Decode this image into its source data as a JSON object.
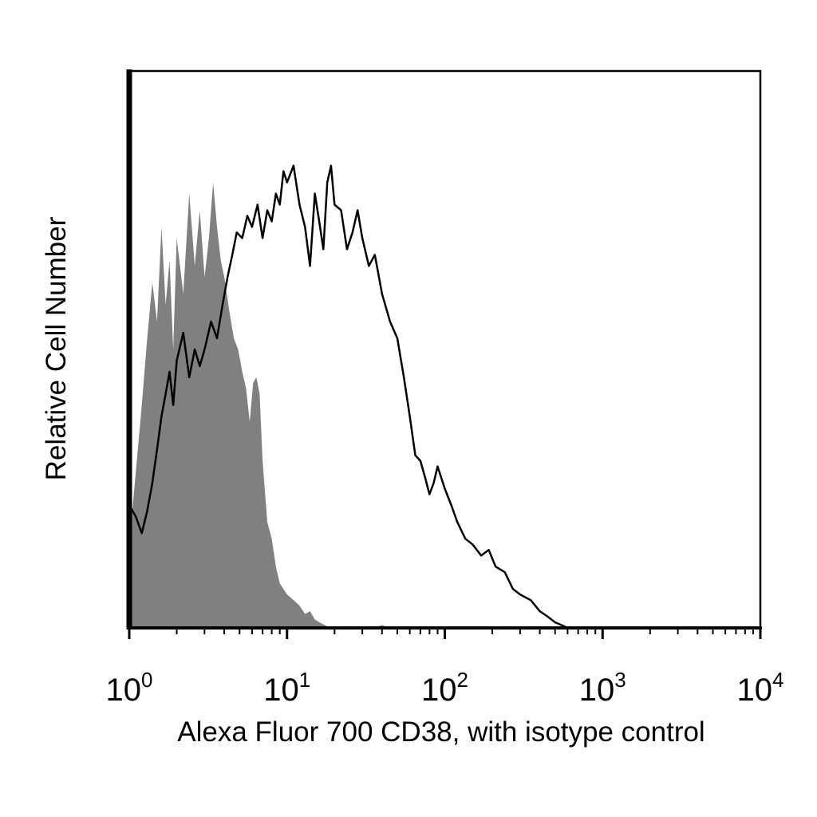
{
  "chart_data": {
    "type": "area",
    "xlabel": "Alexa Fluor 700 CD38, with isotype control",
    "ylabel": "Relative Cell Number",
    "xscale": "log",
    "xlim": [
      1,
      10000
    ],
    "ylim": [
      0,
      100
    ],
    "grid": false,
    "x_ticks": [
      {
        "base": "10",
        "exp": "0",
        "value": 1
      },
      {
        "base": "10",
        "exp": "1",
        "value": 10
      },
      {
        "base": "10",
        "exp": "2",
        "value": 100
      },
      {
        "base": "10",
        "exp": "3",
        "value": 1000
      },
      {
        "base": "10",
        "exp": "4",
        "value": 10000
      }
    ],
    "series": [
      {
        "role": "isotype-control",
        "fill": "#808080",
        "stroke": "none",
        "x": [
          1.0,
          1.1,
          1.2,
          1.3,
          1.4,
          1.5,
          1.6,
          1.7,
          1.8,
          1.9,
          2.0,
          2.2,
          2.4,
          2.6,
          2.8,
          3.0,
          3.2,
          3.4,
          3.6,
          3.8,
          4.0,
          4.3,
          4.6,
          4.9,
          5.2,
          5.5,
          5.8,
          6.1,
          6.4,
          6.7,
          7.0,
          7.5,
          8.0,
          8.5,
          9.0,
          10.0,
          11.0,
          12.0,
          13.0,
          14.0,
          15.0,
          16.5,
          18.0,
          20.0,
          25.0,
          30.0,
          35.0,
          40.0,
          45.0
        ],
        "values": [
          15,
          28,
          40,
          52,
          62,
          55,
          72,
          58,
          66,
          50,
          70,
          60,
          78,
          65,
          75,
          63,
          70,
          80,
          72,
          66,
          63,
          57,
          52,
          50,
          46,
          43,
          37,
          44,
          45,
          42,
          30,
          19,
          16,
          11,
          8,
          6,
          5,
          4,
          2.5,
          3,
          1.5,
          0.8,
          0.3,
          0.1,
          0,
          0,
          0,
          0.5,
          0
        ]
      },
      {
        "role": "CD38",
        "fill": "none",
        "stroke": "#000000",
        "x": [
          1.0,
          1.1,
          1.2,
          1.3,
          1.4,
          1.5,
          1.6,
          1.7,
          1.8,
          1.9,
          2.0,
          2.2,
          2.4,
          2.6,
          2.8,
          3.0,
          3.3,
          3.6,
          3.9,
          4.2,
          4.5,
          4.8,
          5.2,
          5.6,
          6.0,
          6.5,
          7.0,
          7.5,
          8.0,
          8.5,
          9.0,
          9.5,
          10.0,
          11.0,
          12.0,
          13.0,
          14.0,
          15.0,
          16.0,
          17.0,
          18.0,
          19.0,
          20.0,
          22.0,
          24.0,
          26.0,
          28.0,
          30.0,
          33.0,
          36.0,
          40.0,
          45.0,
          50.0,
          55.0,
          60.0,
          65.0,
          70.0,
          75.0,
          80.0,
          85.0,
          90.0,
          100.0,
          110.0,
          120.0,
          135.0,
          150.0,
          170.0,
          190.0,
          210.0,
          240.0,
          270.0,
          300.0,
          350.0,
          400.0,
          450.0,
          500.0,
          550.0,
          600.0
        ],
        "values": [
          22,
          20,
          17,
          21,
          26,
          32,
          38,
          42,
          46,
          40,
          48,
          53,
          45,
          50,
          47,
          50,
          55,
          52,
          58,
          63,
          67,
          71,
          70,
          74,
          72,
          76,
          70,
          75,
          73,
          78,
          76,
          82,
          80,
          83,
          76,
          72,
          65,
          78,
          73,
          68,
          80,
          83,
          76,
          75,
          68,
          71,
          75,
          70,
          65,
          67,
          60,
          55,
          52,
          45,
          38,
          31,
          30,
          27,
          24,
          26,
          29,
          25,
          22,
          19,
          16,
          15,
          13,
          14,
          11,
          10,
          7,
          6,
          5,
          3,
          2,
          1,
          0.5,
          0
        ]
      }
    ]
  }
}
